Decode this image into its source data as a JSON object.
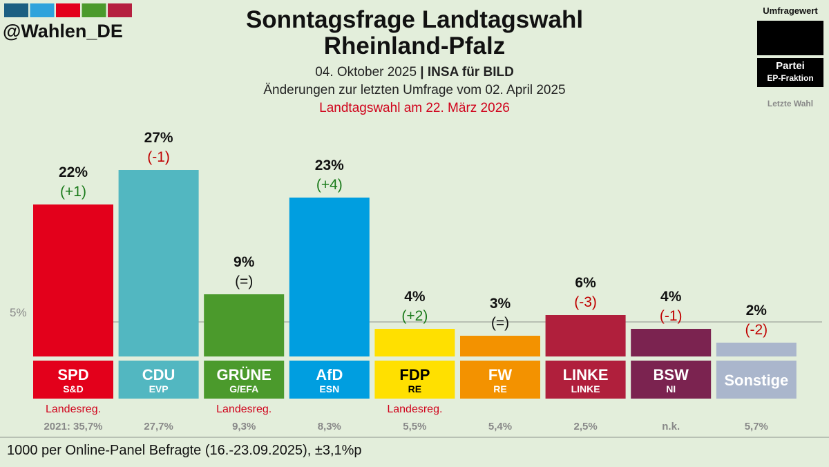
{
  "header": {
    "handle": "@Wahlen_DE",
    "title_line1": "Sonntagsfrage Landtagswahl",
    "title_line2": "Rheinland-Pfalz",
    "date": "04. Oktober 2025",
    "separator": "|",
    "source": "INSA für BILD",
    "changes_note": "Änderungen zur letzten Umfrage vom 02. April 2025",
    "election_note": "Landtagswahl am 22. März 2026",
    "brand_stripe_colors": [
      "#1c5f82",
      "#2ea3dc",
      "#e3001b",
      "#4b9a2c",
      "#b5203f"
    ]
  },
  "legend": {
    "value_label": "Umfragewert",
    "party_label": "Partei",
    "faction_label": "EP-Fraktion",
    "last_label": "Letzte Wahl"
  },
  "footer": {
    "note": "1000 per Online-Panel Befragte (16.-23.09.2025), ±3,1%p"
  },
  "chart_data": {
    "type": "bar",
    "threshold": {
      "value": 5,
      "label": "5%"
    },
    "categories": [
      "SPD",
      "CDU",
      "GRÜNE",
      "AfD",
      "FDP",
      "FW",
      "LINKE",
      "BSW",
      "Sonstige"
    ],
    "values": [
      22,
      27,
      9,
      23,
      4,
      3,
      6,
      4,
      2
    ],
    "value_labels": [
      "22%",
      "27%",
      "9%",
      "23%",
      "4%",
      "3%",
      "6%",
      "4%",
      "2%"
    ],
    "changes": [
      "(+1)",
      "(-1)",
      "(=)",
      "(+4)",
      "(+2)",
      "(=)",
      "(-3)",
      "(-1)",
      "(-2)"
    ],
    "change_colors": [
      "#1a7a1a",
      "#c00000",
      "#111111",
      "#1a7a1a",
      "#1a7a1a",
      "#111111",
      "#c00000",
      "#c00000",
      "#c00000"
    ],
    "factions": [
      "S&D",
      "EVP",
      "G/EFA",
      "ESN",
      "RE",
      "RE",
      "LINKE",
      "NI",
      ""
    ],
    "government": [
      "Landesreg.",
      "",
      "Landesreg.",
      "",
      "Landesreg.",
      "",
      "",
      "",
      ""
    ],
    "last_election": [
      "2021: 35,7%",
      "27,7%",
      "9,3%",
      "8,3%",
      "5,5%",
      "5,4%",
      "2,5%",
      "n.k.",
      "5,7%"
    ],
    "colors": [
      "#e3001b",
      "#52b7c1",
      "#4b9a2c",
      "#009ee0",
      "#ffe000",
      "#f39200",
      "#b01f3c",
      "#7b2350",
      "#aab6cc"
    ],
    "text_colors": [
      "#ffffff",
      "#ffffff",
      "#ffffff",
      "#ffffff",
      "#000000",
      "#ffffff",
      "#ffffff",
      "#ffffff",
      "#ffffff"
    ],
    "ylim": [
      0,
      27
    ]
  }
}
